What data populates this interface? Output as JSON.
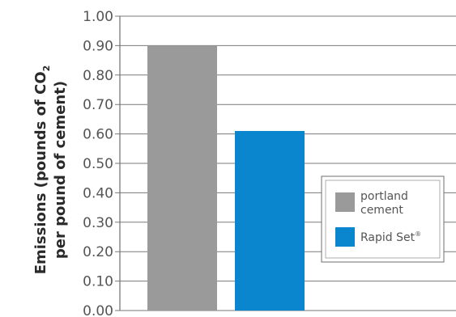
{
  "chart_data": {
    "type": "bar",
    "categories": [
      "portland cement",
      "Rapid Set"
    ],
    "values": [
      0.9,
      0.61
    ],
    "colors": [
      "#9a9a9a",
      "#0a86cf"
    ],
    "ylabel_line1": "Emissions (pounds of CO",
    "ylabel_subscript": "2",
    "ylabel_line2": "per pound of cement)",
    "yticks": [
      "0.00",
      "0.10",
      "0.20",
      "0.30",
      "0.40",
      "0.50",
      "0.60",
      "0.70",
      "0.80",
      "0.90",
      "1.00"
    ],
    "ylim": [
      0,
      1.0
    ],
    "grid": true,
    "legend_position": "right",
    "legend": [
      {
        "label_line1": "portland",
        "label_line2": "cement",
        "color": "#9a9a9a"
      },
      {
        "label_line1": "Rapid Set",
        "superscript": "®",
        "color": "#0a86cf"
      }
    ]
  }
}
